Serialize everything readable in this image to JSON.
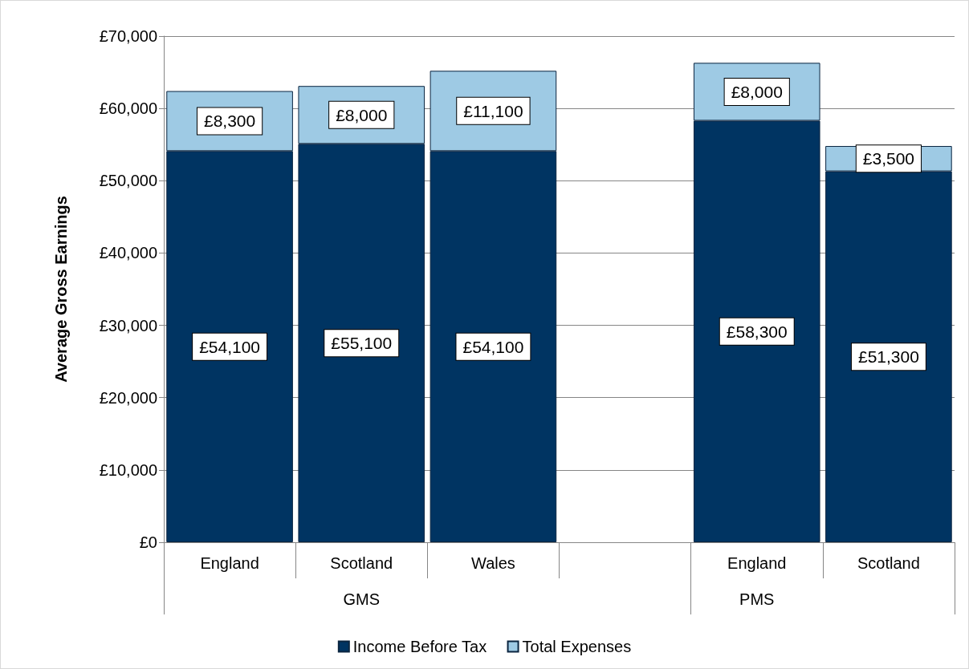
{
  "chart_data": {
    "type": "bar",
    "stacked": true,
    "ylabel": "Average Gross Earnings",
    "categories": [
      "England",
      "Scotland",
      "Wales",
      null,
      "England",
      "Scotland"
    ],
    "series": [
      {
        "name": "Income Before Tax",
        "color": "#003462",
        "values": [
          54100,
          55100,
          54100,
          null,
          58300,
          51300
        ],
        "value_labels": [
          "£54,100",
          "£55,100",
          "£54,100",
          null,
          "£58,300",
          "£51,300"
        ]
      },
      {
        "name": "Total Expenses",
        "color": "#9ecae4",
        "values": [
          8300,
          8000,
          11100,
          null,
          8000,
          3500
        ],
        "value_labels": [
          "£8,300",
          "£8,000",
          "£11,100",
          null,
          "£8,000",
          "£3,500"
        ]
      }
    ],
    "ylim": [
      0,
      70000
    ],
    "yticks": [
      {
        "value": 0,
        "label": "£0"
      },
      {
        "value": 10000,
        "label": "£10,000"
      },
      {
        "value": 20000,
        "label": "£20,000"
      },
      {
        "value": 30000,
        "label": "£30,000"
      },
      {
        "value": 40000,
        "label": "£40,000"
      },
      {
        "value": 50000,
        "label": "£50,000"
      },
      {
        "value": 60000,
        "label": "£60,000"
      },
      {
        "value": 70000,
        "label": "£70,000"
      }
    ],
    "grid": "y",
    "legend": "bottom",
    "annotations": [
      "GMS",
      "PMS"
    ]
  }
}
